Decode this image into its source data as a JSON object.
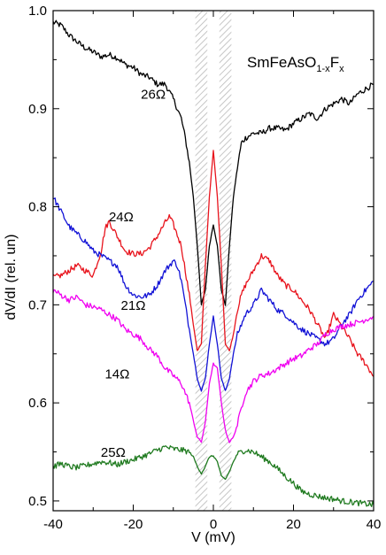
{
  "chart_data": {
    "type": "line",
    "title_parts": {
      "main": "SmFeAsO",
      "sub": "1-x",
      "mid": "F",
      "sub2": "x"
    },
    "xlabel": "V (mV)",
    "ylabel": "dV/dI (rel. un)",
    "xlim": [
      -40,
      40
    ],
    "ylim": [
      0.49,
      1.0
    ],
    "xticks": [
      -40,
      -20,
      0,
      20,
      40
    ],
    "xtick_labels": [
      "-40",
      "-20",
      "0",
      "20",
      "40"
    ],
    "yticks": [
      0.5,
      0.6,
      0.7,
      0.8,
      0.9,
      1.0
    ],
    "ytick_labels": [
      "0.5",
      "0.6",
      "0.7",
      "0.8",
      "0.9",
      "1.0"
    ],
    "grid": false,
    "shaded_bands": [
      [
        -4.5,
        -1.5
      ],
      [
        1.5,
        4.5
      ]
    ],
    "series": [
      {
        "name": "26Ω",
        "color": "#000000",
        "label_at": [
          -15,
          0.91
        ],
        "x": [
          -40,
          -38,
          -36,
          -34,
          -32,
          -30,
          -28,
          -26,
          -24,
          -22,
          -20,
          -18,
          -16,
          -14,
          -12,
          -10,
          -8,
          -7,
          -6,
          -5,
          -4,
          -3.5,
          -3,
          -2,
          -1,
          0,
          1,
          2,
          3,
          3.5,
          4,
          5,
          6,
          7,
          8,
          10,
          12,
          14,
          16,
          18,
          20,
          22,
          24,
          26,
          28,
          30,
          32,
          34,
          36,
          38,
          40
        ],
        "y": [
          0.988,
          0.985,
          0.975,
          0.968,
          0.962,
          0.958,
          0.953,
          0.955,
          0.952,
          0.945,
          0.942,
          0.935,
          0.932,
          0.925,
          0.925,
          0.91,
          0.89,
          0.87,
          0.845,
          0.81,
          0.76,
          0.73,
          0.7,
          0.715,
          0.76,
          0.782,
          0.76,
          0.715,
          0.7,
          0.73,
          0.76,
          0.81,
          0.84,
          0.865,
          0.87,
          0.875,
          0.875,
          0.88,
          0.88,
          0.878,
          0.885,
          0.89,
          0.895,
          0.89,
          0.9,
          0.905,
          0.91,
          0.905,
          0.915,
          0.92,
          0.925
        ]
      },
      {
        "name": "24Ω",
        "color": "#e8131c",
        "label_at": [
          -23,
          0.785
        ],
        "x": [
          -40,
          -38,
          -36,
          -34,
          -32,
          -30,
          -28,
          -27,
          -26,
          -24,
          -22,
          -20,
          -18,
          -16,
          -14,
          -12,
          -11,
          -10,
          -8,
          -7,
          -6,
          -5,
          -4,
          -3,
          -2,
          -1,
          0,
          1,
          2,
          3,
          4,
          5,
          6,
          7,
          8,
          10,
          12,
          14,
          16,
          18,
          20,
          22,
          24,
          26,
          28,
          30,
          32,
          34,
          36,
          38,
          40
        ],
        "y": [
          0.728,
          0.73,
          0.735,
          0.74,
          0.735,
          0.73,
          0.755,
          0.778,
          0.785,
          0.77,
          0.755,
          0.752,
          0.752,
          0.758,
          0.77,
          0.784,
          0.79,
          0.782,
          0.76,
          0.735,
          0.71,
          0.68,
          0.653,
          0.66,
          0.74,
          0.81,
          0.857,
          0.81,
          0.74,
          0.66,
          0.653,
          0.67,
          0.695,
          0.71,
          0.72,
          0.735,
          0.75,
          0.745,
          0.73,
          0.72,
          0.715,
          0.705,
          0.695,
          0.68,
          0.665,
          0.69,
          0.678,
          0.665,
          0.65,
          0.64,
          0.627
        ]
      },
      {
        "name": "21Ω",
        "color": "#1212d6",
        "label_at": [
          -20,
          0.695
        ],
        "x": [
          -40,
          -38,
          -36,
          -34,
          -32,
          -30,
          -28,
          -26,
          -24,
          -22,
          -20,
          -18,
          -16,
          -14,
          -12,
          -10,
          -9,
          -8,
          -7,
          -6,
          -5,
          -4,
          -3,
          -2,
          -1,
          0,
          1,
          2,
          3,
          4,
          5,
          6,
          7,
          8,
          10,
          12,
          14,
          16,
          18,
          20,
          22,
          24,
          26,
          28,
          30,
          32,
          34,
          36,
          38,
          40
        ],
        "y": [
          0.81,
          0.795,
          0.78,
          0.772,
          0.765,
          0.755,
          0.75,
          0.745,
          0.74,
          0.72,
          0.71,
          0.708,
          0.71,
          0.72,
          0.735,
          0.745,
          0.74,
          0.725,
          0.7,
          0.675,
          0.65,
          0.625,
          0.612,
          0.625,
          0.66,
          0.688,
          0.66,
          0.625,
          0.612,
          0.625,
          0.65,
          0.67,
          0.68,
          0.69,
          0.7,
          0.715,
          0.705,
          0.695,
          0.69,
          0.682,
          0.675,
          0.67,
          0.665,
          0.66,
          0.665,
          0.68,
          0.69,
          0.705,
          0.715,
          0.724
        ]
      },
      {
        "name": "14Ω",
        "color": "#f000f0",
        "label_at": [
          -24,
          0.625
        ],
        "x": [
          -40,
          -38,
          -36,
          -34,
          -32,
          -30,
          -28,
          -26,
          -24,
          -22,
          -20,
          -18,
          -16,
          -14,
          -12,
          -10,
          -8,
          -7,
          -6,
          -5,
          -4,
          -3,
          -2,
          -1,
          0,
          1,
          2,
          3,
          4,
          5,
          6,
          7,
          8,
          10,
          12,
          14,
          16,
          18,
          20,
          22,
          24,
          26,
          28,
          30,
          32,
          34,
          36,
          38,
          40
        ],
        "y": [
          0.715,
          0.71,
          0.705,
          0.708,
          0.7,
          0.698,
          0.695,
          0.69,
          0.685,
          0.675,
          0.67,
          0.665,
          0.655,
          0.648,
          0.635,
          0.628,
          0.62,
          0.61,
          0.6,
          0.582,
          0.565,
          0.56,
          0.58,
          0.62,
          0.64,
          0.635,
          0.6,
          0.572,
          0.56,
          0.565,
          0.578,
          0.595,
          0.61,
          0.622,
          0.628,
          0.63,
          0.635,
          0.64,
          0.645,
          0.648,
          0.655,
          0.66,
          0.67,
          0.675,
          0.678,
          0.68,
          0.682,
          0.685,
          0.688
        ]
      },
      {
        "name": "25Ω",
        "color": "#1f7a1f",
        "label_at": [
          -25,
          0.545
        ],
        "x": [
          -40,
          -38,
          -36,
          -34,
          -32,
          -30,
          -28,
          -26,
          -24,
          -22,
          -20,
          -18,
          -16,
          -14,
          -12,
          -10,
          -8,
          -6,
          -5,
          -4,
          -3,
          -2,
          -1,
          0,
          1,
          2,
          3,
          4,
          5,
          6,
          8,
          10,
          12,
          14,
          16,
          18,
          20,
          22,
          24,
          26,
          28,
          30,
          32,
          34,
          36,
          38,
          40
        ],
        "y": [
          0.535,
          0.538,
          0.535,
          0.534,
          0.536,
          0.538,
          0.54,
          0.539,
          0.537,
          0.54,
          0.542,
          0.545,
          0.548,
          0.552,
          0.555,
          0.553,
          0.552,
          0.55,
          0.545,
          0.535,
          0.528,
          0.535,
          0.545,
          0.546,
          0.54,
          0.525,
          0.522,
          0.53,
          0.54,
          0.548,
          0.552,
          0.55,
          0.545,
          0.54,
          0.533,
          0.525,
          0.518,
          0.51,
          0.507,
          0.505,
          0.503,
          0.502,
          0.5,
          0.499,
          0.498,
          0.497,
          0.496
        ]
      }
    ]
  }
}
